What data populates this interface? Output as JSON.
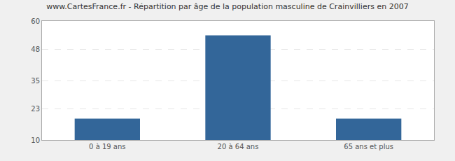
{
  "chart_data": {
    "type": "bar",
    "title": "www.CartesFrance.fr - Répartition par âge de la population masculine de Crainvilliers en 2007",
    "categories": [
      "0 à 19 ans",
      "20 à 64 ans",
      "65 ans et plus"
    ],
    "values": [
      19,
      54,
      19
    ],
    "color": "#336699",
    "ylim": [
      10,
      60
    ],
    "yticks": [
      10,
      23,
      35,
      48,
      60
    ],
    "grid": true
  }
}
